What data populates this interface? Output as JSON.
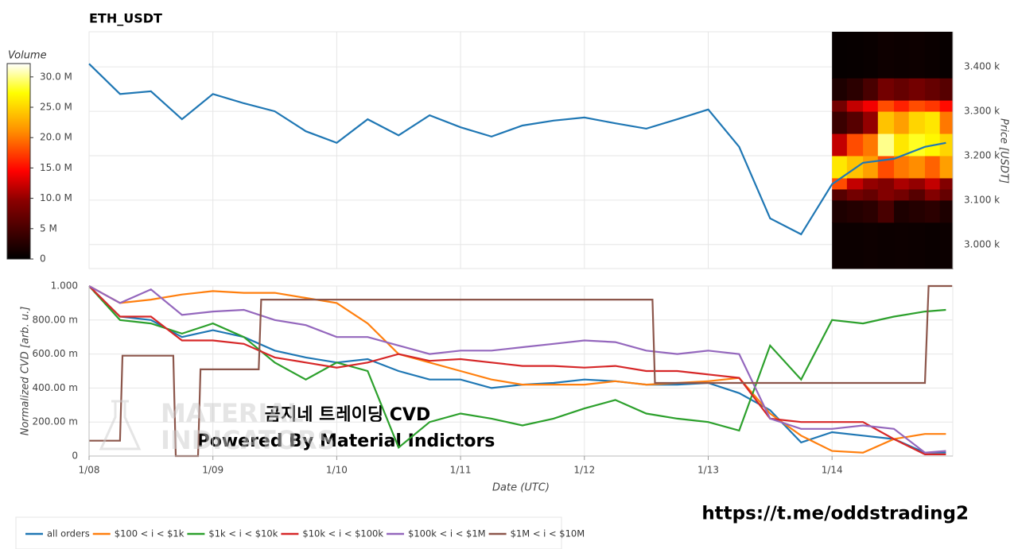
{
  "chart_data": [
    {
      "type": "line",
      "title": "ETH_USDT",
      "ylabel": "Price [USDT]",
      "color": "#1f77b4",
      "grid": true,
      "x": [
        0,
        0.25,
        0.5,
        0.75,
        1,
        1.25,
        1.5,
        1.75,
        2,
        2.25,
        2.5,
        2.75,
        3,
        3.25,
        3.5,
        3.75,
        4,
        4.25,
        4.5,
        4.75,
        5,
        5.25,
        5.5,
        5.75,
        6,
        6.25,
        6.5,
        6.75,
        6.92
      ],
      "values": [
        3407,
        3339,
        3345,
        3282,
        3339,
        3318,
        3300,
        3255,
        3229,
        3282,
        3246,
        3291,
        3264,
        3243,
        3268,
        3279,
        3286,
        3273,
        3261,
        3282,
        3304,
        3220,
        3059,
        3023,
        3136,
        3184,
        3193,
        3220,
        3229
      ],
      "xlim": [
        0,
        6.975
      ],
      "ylim": [
        2946,
        3479
      ],
      "yticks": [
        {
          "value": 3000,
          "label": "3.000 k"
        },
        {
          "value": 3100,
          "label": "3.100 k"
        },
        {
          "value": 3200,
          "label": "3.200 k"
        },
        {
          "value": 3300,
          "label": "3.300 k"
        },
        {
          "value": 3400,
          "label": "3.400 k"
        }
      ],
      "heatmap": {
        "x": [
          6.0,
          6.12,
          6.25,
          6.37,
          6.5,
          6.62,
          6.75,
          6.87,
          6.975
        ],
        "y": [
          2946,
          3050,
          3100,
          3125,
          3150,
          3200,
          3250,
          3300,
          3325,
          3375,
          3479
        ],
        "values": [
          [
            800000,
            800000,
            1000000,
            800000,
            900000,
            800000,
            700000,
            800000
          ],
          [
            2000000,
            2500000,
            3000000,
            5000000,
            2000000,
            2500000,
            3000000,
            2000000
          ],
          [
            6000000,
            8000000,
            7000000,
            9000000,
            8000000,
            6000000,
            9000000,
            7000000
          ],
          [
            18000000,
            12000000,
            10000000,
            9000000,
            11000000,
            10000000,
            12000000,
            9000000
          ],
          [
            26000000,
            24000000,
            22000000,
            18000000,
            20000000,
            21000000,
            19000000,
            22000000
          ],
          [
            12000000,
            18000000,
            20000000,
            30000000,
            26000000,
            28000000,
            27000000,
            25000000
          ],
          [
            4000000,
            6000000,
            10000000,
            24000000,
            22000000,
            25000000,
            26000000,
            20000000
          ],
          [
            8000000,
            12000000,
            14000000,
            18000000,
            16000000,
            18000000,
            17000000,
            15000000
          ],
          [
            2000000,
            3000000,
            5000000,
            8000000,
            7000000,
            8000000,
            7000000,
            6000000
          ],
          [
            400000,
            500000,
            600000,
            1000000,
            800000,
            900000,
            700000,
            500000
          ]
        ]
      },
      "colorbar": {
        "title": "Volume",
        "lim": [
          0,
          32200000
        ],
        "ticks": [
          0,
          {
            "value": 5000000,
            "label": "5 M"
          },
          {
            "value": 10000000,
            "label": "10.0 M"
          },
          {
            "value": 15000000,
            "label": "15.0 M"
          },
          {
            "value": 20000000,
            "label": "20.0 M"
          },
          {
            "value": 25000000,
            "label": "25.0 M"
          },
          {
            "value": 30000000,
            "label": "30.0 M"
          }
        ]
      }
    },
    {
      "type": "line",
      "xlabel": "Date (UTC)",
      "ylabel": "Normalized CVD [arb. u.]",
      "grid": true,
      "legend": "bottom",
      "x": [
        0,
        0.25,
        0.5,
        0.75,
        1,
        1.25,
        1.5,
        1.75,
        2,
        2.25,
        2.5,
        2.75,
        3,
        3.25,
        3.5,
        3.75,
        4,
        4.25,
        4.5,
        4.75,
        5,
        5.25,
        5.5,
        5.75,
        6,
        6.25,
        6.5,
        6.75,
        6.92
      ],
      "xlim": [
        0,
        6.975
      ],
      "ylim": [
        0,
        1
      ],
      "xticks": [
        {
          "value": 0,
          "label": "1/08"
        },
        {
          "value": 1,
          "label": "1/09"
        },
        {
          "value": 2,
          "label": "1/10"
        },
        {
          "value": 3,
          "label": "1/11"
        },
        {
          "value": 4,
          "label": "1/12"
        },
        {
          "value": 5,
          "label": "1/13"
        },
        {
          "value": 6,
          "label": "1/14"
        }
      ],
      "yticks": [
        0,
        {
          "value": 0.2,
          "label": "200.00 m"
        },
        {
          "value": 0.4,
          "label": "400.00 m"
        },
        {
          "value": 0.6,
          "label": "600.00 m"
        },
        {
          "value": 0.8,
          "label": "800.00 m"
        },
        {
          "value": 1,
          "label": "1.000"
        }
      ],
      "series": [
        {
          "name": "all orders",
          "color": "#1f77b4",
          "values": [
            1.0,
            0.82,
            0.8,
            0.7,
            0.74,
            0.7,
            0.62,
            0.58,
            0.55,
            0.57,
            0.5,
            0.45,
            0.45,
            0.4,
            0.42,
            0.43,
            0.45,
            0.44,
            0.42,
            0.42,
            0.43,
            0.37,
            0.27,
            0.08,
            0.14,
            0.12,
            0.1,
            0.02,
            0.02
          ]
        },
        {
          "name": "$100 < i < $1k",
          "color": "#ff7f0e",
          "values": [
            1.0,
            0.9,
            0.92,
            0.95,
            0.97,
            0.96,
            0.96,
            0.93,
            0.9,
            0.78,
            0.6,
            0.55,
            0.5,
            0.45,
            0.42,
            0.42,
            0.42,
            0.44,
            0.42,
            0.43,
            0.44,
            0.46,
            0.25,
            0.12,
            0.03,
            0.02,
            0.1,
            0.13,
            0.13
          ]
        },
        {
          "name": "$1k < i < $10k",
          "color": "#2ca02c",
          "values": [
            1.0,
            0.8,
            0.78,
            0.72,
            0.78,
            0.7,
            0.55,
            0.45,
            0.55,
            0.5,
            0.05,
            0.2,
            0.25,
            0.22,
            0.18,
            0.22,
            0.28,
            0.33,
            0.25,
            0.22,
            0.2,
            0.15,
            0.65,
            0.45,
            0.8,
            0.78,
            0.82,
            0.85,
            0.86
          ]
        },
        {
          "name": "$10k < i < $100k",
          "color": "#d62728",
          "values": [
            1.0,
            0.82,
            0.82,
            0.68,
            0.68,
            0.66,
            0.58,
            0.55,
            0.52,
            0.55,
            0.6,
            0.56,
            0.57,
            0.55,
            0.53,
            0.53,
            0.52,
            0.53,
            0.5,
            0.5,
            0.48,
            0.46,
            0.22,
            0.2,
            0.2,
            0.2,
            0.1,
            0.01,
            0.01
          ]
        },
        {
          "name": "$100k < i < $1M",
          "color": "#9467bd",
          "values": [
            1.0,
            0.9,
            0.98,
            0.83,
            0.85,
            0.86,
            0.8,
            0.77,
            0.7,
            0.7,
            0.65,
            0.6,
            0.62,
            0.62,
            0.64,
            0.66,
            0.68,
            0.67,
            0.62,
            0.6,
            0.62,
            0.6,
            0.22,
            0.16,
            0.16,
            0.18,
            0.16,
            0.02,
            0.03
          ]
        },
        {
          "name": "$1M < i < $10M",
          "color": "#8c564b",
          "x": [
            0,
            0.25,
            0.27,
            0.68,
            0.7,
            0.88,
            0.9,
            1.37,
            1.39,
            4.55,
            4.57,
            6.75,
            6.78,
            6.97
          ],
          "values": [
            0.09,
            0.09,
            0.59,
            0.59,
            0,
            0,
            0.51,
            0.51,
            0.92,
            0.92,
            0.43,
            0.43,
            1,
            1
          ]
        }
      ]
    }
  ],
  "logo": [
    "MATERIAL",
    "INDICATORS"
  ],
  "watermark": [
    "곰지네 트레이딩 CVD",
    "Powered By Material Indictors"
  ],
  "link": "https://t.me/oddstrading2"
}
